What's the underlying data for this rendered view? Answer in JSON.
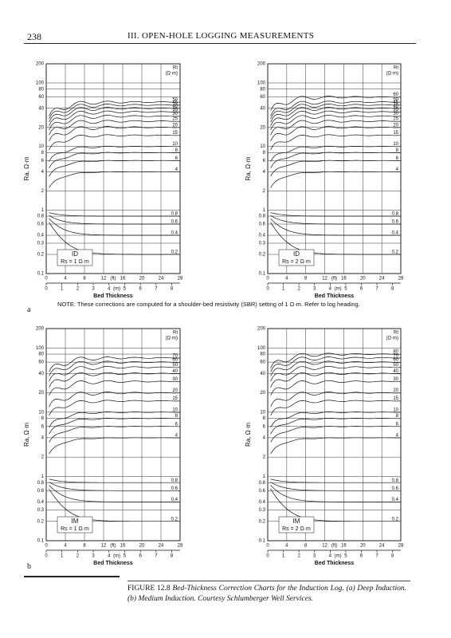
{
  "header": {
    "page": "238",
    "title": "III. OPEN-HOLE LOGGING MEASUREMENTS"
  },
  "axes": {
    "ylim": [
      0.1,
      200
    ],
    "yticks": [
      0.1,
      0.2,
      0.3,
      0.4,
      0.6,
      0.8,
      1,
      2,
      4,
      6,
      8,
      10,
      20,
      40,
      60,
      80,
      100,
      200
    ],
    "xlim": [
      0,
      28
    ],
    "xticks": [
      0,
      4,
      8,
      12,
      16,
      20,
      24,
      28
    ],
    "x_unit": "(ft)",
    "mlim": [
      0,
      8.53
    ],
    "mticks": [
      0,
      1,
      2,
      3,
      4,
      5,
      6,
      7,
      8
    ],
    "m_unit": "(m)",
    "x_label": "Bed Thickness",
    "y_label": "Ra, Ω·m",
    "rt_label": "Rt",
    "rt_unit": "(Ω·m)"
  },
  "charts": [
    {
      "tool": "ID",
      "shoulder": "Rs = 1 Ω·m",
      "rt_values": [
        50,
        45,
        40,
        35,
        30,
        25,
        20,
        15,
        10,
        8,
        6,
        4,
        0.8,
        0.6,
        0.4,
        0.2
      ]
    },
    {
      "tool": "ID",
      "shoulder": "Rs = 2 Ω·m",
      "rt_values": [
        60,
        50,
        45,
        40,
        35,
        30,
        25,
        20,
        15,
        10,
        8,
        6,
        4,
        0.8,
        0.6,
        0.4,
        0.2
      ]
    },
    {
      "tool": "IM",
      "shoulder": "Rs = 1 Ω·m",
      "rt_values": [
        70,
        60,
        50,
        40,
        30,
        20,
        15,
        10,
        8,
        6,
        4,
        0.8,
        0.6,
        0.4,
        0.2
      ]
    },
    {
      "tool": "IM",
      "shoulder": "Rs = 2 Ω·m",
      "rt_values": [
        80,
        70,
        60,
        50,
        40,
        30,
        20,
        15,
        10,
        8,
        6,
        4,
        0.8,
        0.6,
        0.4,
        0.2
      ]
    }
  ],
  "note": "NOTE: These corrections are computed for a shoulder-bed resistivity (SBR) setting of 1 Ω·m. Refer to log heading.",
  "panel_a": "a",
  "panel_b": "b",
  "caption": {
    "lead": "FIGURE 12.8",
    "body": "Bed-Thickness Correction Charts for the Induction Log. (a) Deep Induction. (b) Medium Induction. Courtesy Schlumberger Well Services."
  }
}
